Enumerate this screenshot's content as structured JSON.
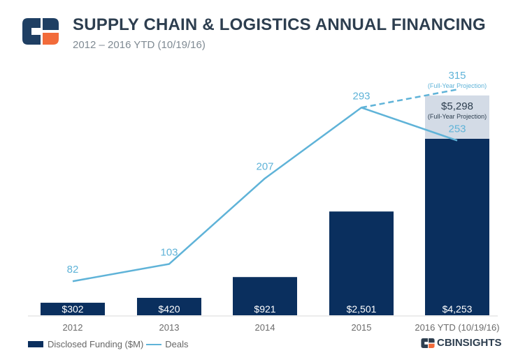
{
  "header": {
    "title": "SUPPLY CHAIN & LOGISTICS ANNUAL FINANCING",
    "subtitle": "2012 – 2016 YTD (10/19/16)"
  },
  "colors": {
    "bar": "#0a2f5e",
    "projection_bar": "#d3dbe6",
    "line": "#5fb3d8",
    "logo_dark": "#1f3f63",
    "logo_orange": "#f26b3a"
  },
  "legend": {
    "funding_label": "Disclosed Funding ($M)",
    "deals_label": "Deals"
  },
  "brand": {
    "name": "CBINSIGHTS"
  },
  "chart_data": {
    "type": "bar",
    "categories": [
      "2012",
      "2013",
      "2014",
      "2015",
      "2016 YTD (10/19/16)"
    ],
    "series": [
      {
        "name": "Disclosed Funding ($M)",
        "type": "bar",
        "values": [
          302,
          420,
          921,
          2501,
          4253
        ],
        "labels": [
          "$302",
          "$420",
          "$921",
          "$2,501",
          "$4,253"
        ]
      },
      {
        "name": "Deals",
        "type": "line",
        "values": [
          82,
          103,
          207,
          293,
          253
        ],
        "labels": [
          "82",
          "103",
          "207",
          "293",
          "253"
        ]
      }
    ],
    "projection": {
      "funding_value": 5298,
      "funding_label": "$5,298",
      "funding_note": "(Full-Year Projection)",
      "deals_value": 315,
      "deals_label": "315",
      "deals_note": "(Full-Year Projection)"
    },
    "legend_position": "bottom-left",
    "grid": false
  }
}
